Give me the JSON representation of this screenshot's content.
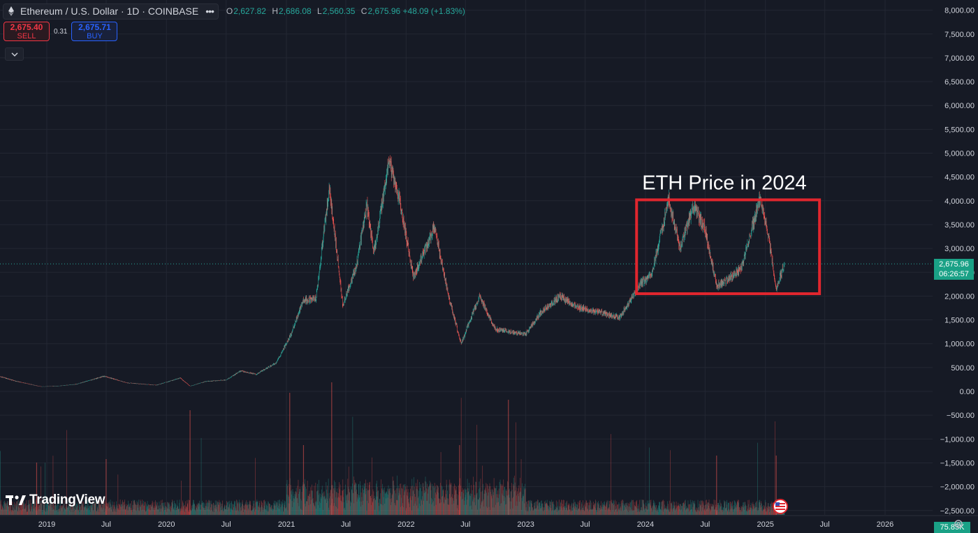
{
  "header": {
    "symbol_text": "Ethereum / U.S. Dollar · 1D · COINBASE",
    "ohlc": [
      {
        "k": "O",
        "v": "2,627.82"
      },
      {
        "k": "H",
        "v": "2,686.08"
      },
      {
        "k": "L",
        "v": "2,560.35"
      },
      {
        "k": "C",
        "v": "2,675.96 +48.09 (+1.83%)"
      }
    ],
    "more_icon": "more-dots-icon",
    "symbol_icon": "ethereum-logo-icon"
  },
  "trade": {
    "sell_price": "2,675.40",
    "sell_label": "SELL",
    "spread": "0.31",
    "buy_price": "2,675.71",
    "buy_label": "BUY",
    "collapse_icon": "chevron-down-icon"
  },
  "brand": {
    "logo_text": "TradingView"
  },
  "last_price": {
    "price": "2,675.96",
    "countdown": "06:26:57"
  },
  "volume_tag": "75.85K",
  "colors": {
    "up": "#26a69a",
    "down": "#ef5350",
    "background": "#161a25",
    "grid": "#232733",
    "highlight": "#e0262e",
    "price_tag": "#1aa186"
  },
  "chart_data": {
    "type": "line",
    "y_ticks": [
      "8,000.00",
      "7,500.00",
      "7,000.00",
      "6,500.00",
      "6,000.00",
      "5,500.00",
      "5,000.00",
      "4,500.00",
      "4,000.00",
      "3,500.00",
      "3,000.00",
      "2,500.00",
      "2,000.00",
      "1,500.00",
      "1,000.00",
      "500.00",
      "0.00",
      "−500.00",
      "−1,000.00",
      "−1,500.00",
      "−2,000.00",
      "−2,500.00"
    ],
    "x_ticks": [
      "2019",
      "Jul",
      "2020",
      "Jul",
      "2021",
      "Jul",
      "2022",
      "Jul",
      "2023",
      "Jul",
      "2024",
      "Jul",
      "2025",
      "Jul",
      "2026"
    ],
    "ylim": [
      -2500,
      8000
    ],
    "grid": true,
    "series": [
      {
        "x": [
          "2018-06-01",
          "2018-08-01",
          "2018-10-01",
          "2018-12-15",
          "2019-02-01",
          "2019-04-01",
          "2019-06-25",
          "2019-09-01",
          "2019-12-01",
          "2020-02-12",
          "2020-03-13",
          "2020-05-01",
          "2020-07-01",
          "2020-08-15",
          "2020-10-01",
          "2020-12-01",
          "2021-01-15",
          "2021-02-20",
          "2021-04-01",
          "2021-05-12",
          "2021-06-22",
          "2021-08-01",
          "2021-09-03",
          "2021-09-25",
          "2021-11-10",
          "2021-12-15",
          "2022-01-24",
          "2022-03-28",
          "2022-05-10",
          "2022-06-18",
          "2022-08-13",
          "2022-09-30",
          "2022-11-09",
          "2022-12-31",
          "2023-02-15",
          "2023-04-15",
          "2023-06-15",
          "2023-08-15",
          "2023-10-15",
          "2023-12-15",
          "2024-01-20",
          "2024-03-12",
          "2024-04-15",
          "2024-05-27",
          "2024-07-01",
          "2024-08-05",
          "2024-09-10",
          "2024-10-20",
          "2024-12-16",
          "2025-01-10",
          "2025-02-03",
          "2025-02-28"
        ],
        "y": [
          520,
          330,
          210,
          100,
          110,
          150,
          320,
          180,
          130,
          280,
          110,
          210,
          240,
          430,
          360,
          600,
          1200,
          1900,
          1950,
          4300,
          1800,
          2600,
          3900,
          2900,
          4850,
          3900,
          2400,
          3450,
          2000,
          1000,
          2000,
          1300,
          1250,
          1200,
          1650,
          2000,
          1750,
          1650,
          1550,
          2250,
          2450,
          4050,
          3000,
          3900,
          3400,
          2200,
          2350,
          2600,
          4050,
          3250,
          2150,
          2675.96
        ]
      }
    ],
    "volume_scale": "series of daily volume bars, peaks ≈ 4 spikes",
    "annotations": [
      {
        "text": "ETH Price in 2024",
        "x_from": "2023-12-05",
        "x_to": "2025-06-15",
        "y_from": 2050,
        "y_to": 4020
      }
    ]
  }
}
